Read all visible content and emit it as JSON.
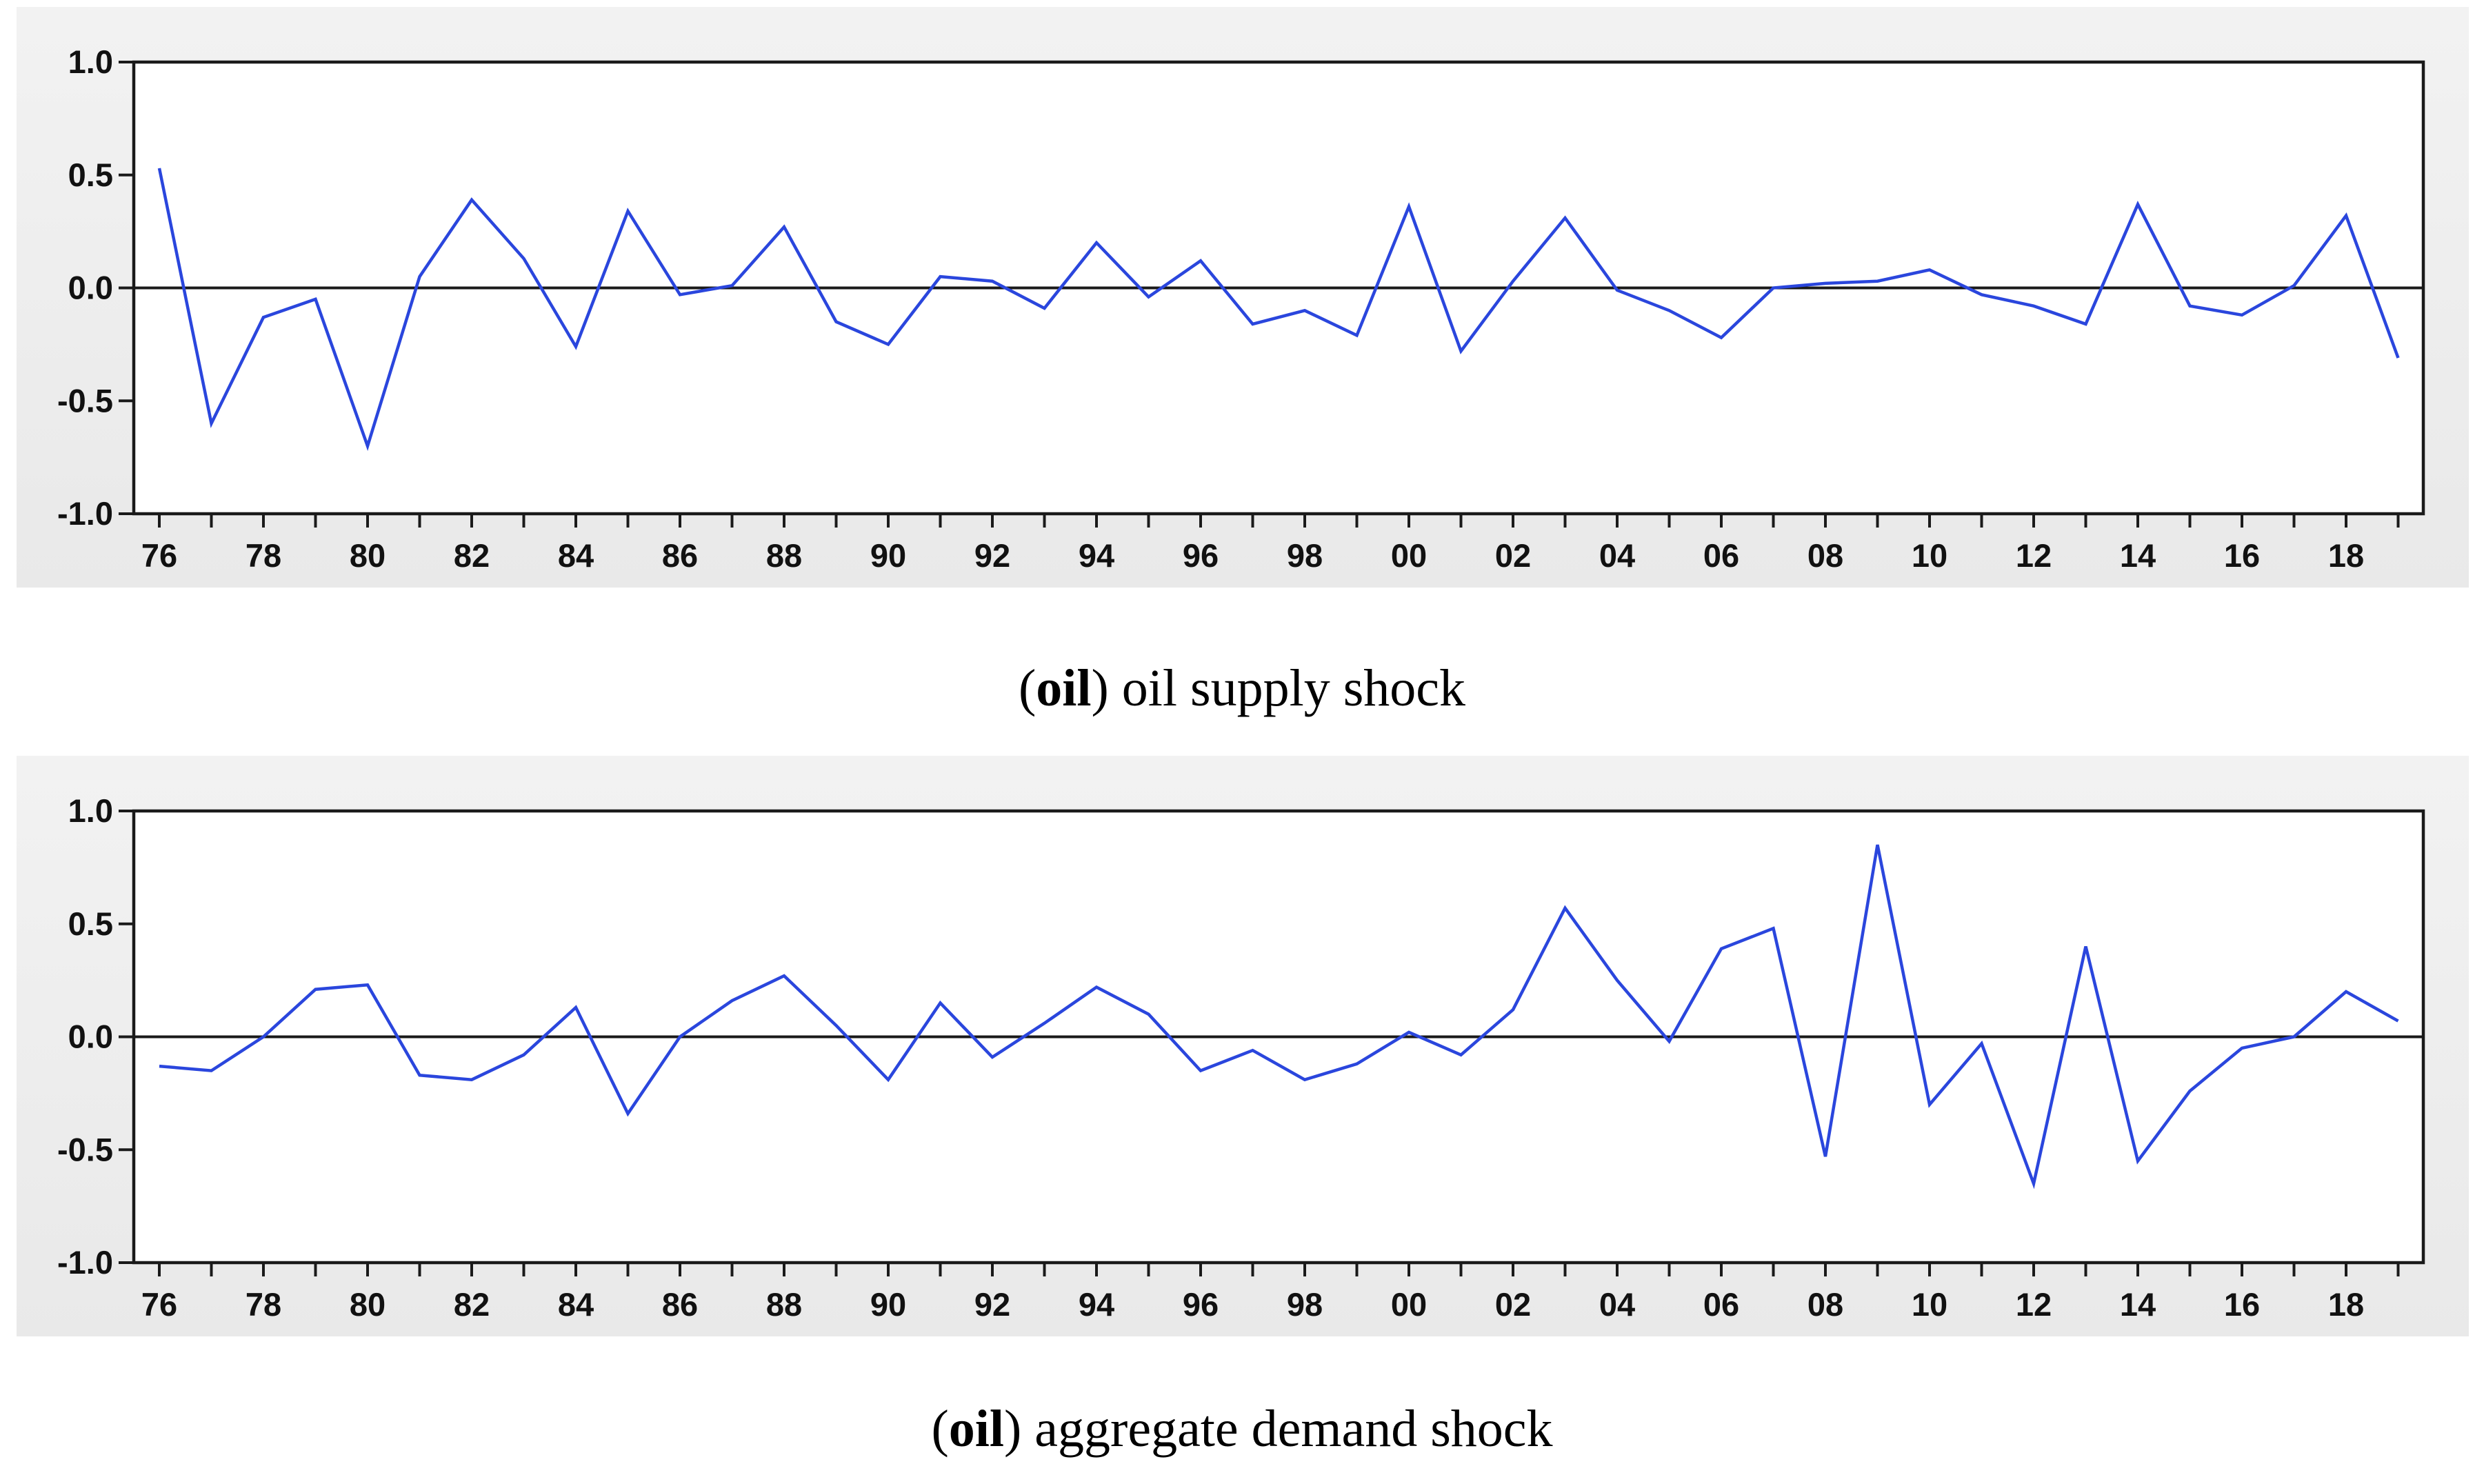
{
  "colors": {
    "panel_background": "#eeeeee",
    "plot_background": "#ffffff",
    "axis_frame": "#1a1a1a",
    "zero_line": "#1a1a1a",
    "series_line": "#2a46dd",
    "tick_text": "#111111"
  },
  "chart_data": [
    {
      "type": "line",
      "title": "(oil) oil supply shock",
      "caption": {
        "open": "(",
        "bold": "oil",
        "rest": ") oil supply shock"
      },
      "xlabel": "",
      "ylabel": "",
      "ylim": [
        -1.0,
        1.0
      ],
      "yticks": [
        1.0,
        0.5,
        0.0,
        -0.5,
        -1.0
      ],
      "ytick_labels": [
        "1.0",
        "0.5",
        "0.0",
        "-0.5",
        "-1.0"
      ],
      "xtick_label_years": [
        1976,
        1978,
        1980,
        1982,
        1984,
        1986,
        1988,
        1990,
        1992,
        1994,
        1996,
        1998,
        2000,
        2002,
        2004,
        2006,
        2008,
        2010,
        2012,
        2014,
        2016,
        2018
      ],
      "xtick_labels": [
        "76",
        "78",
        "80",
        "82",
        "84",
        "86",
        "88",
        "90",
        "92",
        "94",
        "96",
        "98",
        "00",
        "02",
        "04",
        "06",
        "08",
        "10",
        "12",
        "14",
        "16",
        "18"
      ],
      "zero_line": true,
      "grid": false,
      "legend": "none",
      "x": [
        1976,
        1977,
        1978,
        1979,
        1980,
        1981,
        1982,
        1983,
        1984,
        1985,
        1986,
        1987,
        1988,
        1989,
        1990,
        1991,
        1992,
        1993,
        1994,
        1995,
        1996,
        1997,
        1998,
        1999,
        2000,
        2001,
        2002,
        2003,
        2004,
        2005,
        2006,
        2007,
        2008,
        2009,
        2010,
        2011,
        2012,
        2013,
        2014,
        2015,
        2016,
        2017,
        2018,
        2019
      ],
      "values": [
        0.53,
        -0.6,
        -0.13,
        -0.05,
        -0.7,
        0.05,
        0.39,
        0.13,
        -0.26,
        0.34,
        -0.03,
        0.01,
        0.27,
        -0.15,
        -0.25,
        0.05,
        0.03,
        -0.09,
        0.2,
        -0.04,
        0.12,
        -0.16,
        -0.1,
        -0.21,
        0.36,
        -0.28,
        0.03,
        0.31,
        -0.01,
        -0.1,
        -0.22,
        0.0,
        0.02,
        0.03,
        0.08,
        -0.03,
        -0.08,
        -0.16,
        0.37,
        -0.08,
        -0.12,
        0.01,
        0.32,
        -0.31
      ]
    },
    {
      "type": "line",
      "title": "(oil) aggregate demand shock",
      "caption": {
        "open": "(",
        "bold": "oil",
        "rest": ") aggregate demand shock"
      },
      "xlabel": "",
      "ylabel": "",
      "ylim": [
        -1.0,
        1.0
      ],
      "yticks": [
        1.0,
        0.5,
        0.0,
        -0.5,
        -1.0
      ],
      "ytick_labels": [
        "1.0",
        "0.5",
        "0.0",
        "-0.5",
        "-1.0"
      ],
      "xtick_label_years": [
        1976,
        1978,
        1980,
        1982,
        1984,
        1986,
        1988,
        1990,
        1992,
        1994,
        1996,
        1998,
        2000,
        2002,
        2004,
        2006,
        2008,
        2010,
        2012,
        2014,
        2016,
        2018
      ],
      "xtick_labels": [
        "76",
        "78",
        "80",
        "82",
        "84",
        "86",
        "88",
        "90",
        "92",
        "94",
        "96",
        "98",
        "00",
        "02",
        "04",
        "06",
        "08",
        "10",
        "12",
        "14",
        "16",
        "18"
      ],
      "zero_line": true,
      "grid": false,
      "legend": "none",
      "x": [
        1976,
        1977,
        1978,
        1979,
        1980,
        1981,
        1982,
        1983,
        1984,
        1985,
        1986,
        1987,
        1988,
        1989,
        1990,
        1991,
        1992,
        1993,
        1994,
        1995,
        1996,
        1997,
        1998,
        1999,
        2000,
        2001,
        2002,
        2003,
        2004,
        2005,
        2006,
        2007,
        2008,
        2009,
        2010,
        2011,
        2012,
        2013,
        2014,
        2015,
        2016,
        2017,
        2018,
        2019
      ],
      "values": [
        -0.13,
        -0.15,
        0.0,
        0.21,
        0.23,
        -0.17,
        -0.19,
        -0.08,
        0.13,
        -0.34,
        0.0,
        0.16,
        0.27,
        0.05,
        -0.19,
        0.15,
        -0.09,
        0.06,
        0.22,
        0.1,
        -0.15,
        -0.06,
        -0.19,
        -0.12,
        0.02,
        -0.08,
        0.12,
        0.57,
        0.25,
        -0.02,
        0.39,
        0.48,
        -0.53,
        0.85,
        -0.3,
        -0.03,
        -0.65,
        0.4,
        -0.55,
        -0.24,
        -0.05,
        0.0,
        0.2,
        0.07
      ]
    }
  ]
}
